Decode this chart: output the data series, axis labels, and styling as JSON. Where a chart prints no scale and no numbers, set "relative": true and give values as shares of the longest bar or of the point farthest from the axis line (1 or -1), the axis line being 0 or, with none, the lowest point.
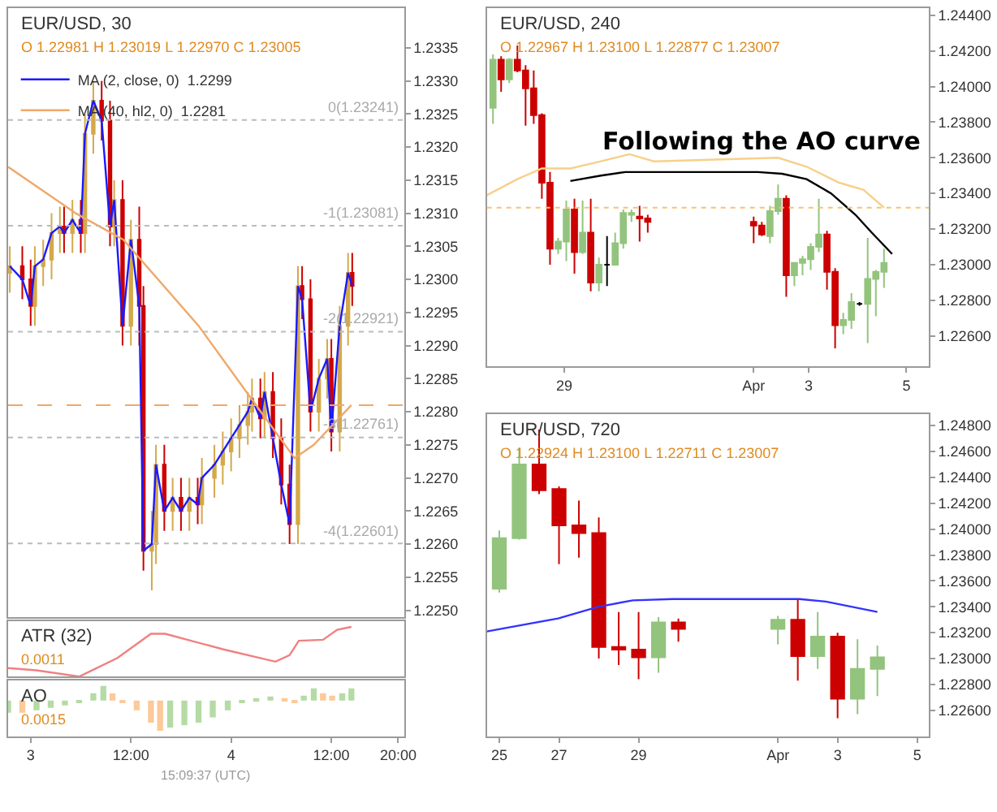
{
  "chart_data": [
    {
      "type": "candlestick",
      "title": "EUR/USD, 30",
      "subtitle": "O 1.22981 H 1.23019 L 1.22970 C 1.23005",
      "x": [
        "--04-02T21:30",
        "--04-02T23:00",
        "--04-03T00:00",
        "--04-03T00:30",
        "--04-03T01:30",
        "--04-03T02:30",
        "--04-03T03:30",
        "--04-03T04:00",
        "--04-03T05:00",
        "--04-03T06:00",
        "--04-03T06:30",
        "--04-03T07:30",
        "--04-03T08:30",
        "--04-03T09:30",
        "--04-03T10:00",
        "--04-03T11:00",
        "--04-03T12:00",
        "--04-03T13:00",
        "--04-03T13:30",
        "--04-03T14:30",
        "--04-03T15:00",
        "--04-03T16:00",
        "--04-03T17:00",
        "--04-03T18:00",
        "--04-03T19:00",
        "--04-03T20:00",
        "--04-03T20:30",
        "--04-03T22:00",
        "--04-03T23:00",
        "--04-04T00:00",
        "--04-04T01:00",
        "--04-04T02:00",
        "--04-04T02:30",
        "--04-04T03:30",
        "--04-04T04:00",
        "--04-04T05:00",
        "--04-04T06:00",
        "--04-04T07:00",
        "--04-04T08:00",
        "--04-04T08:30",
        "--04-04T09:30",
        "--04-04T10:30",
        "--04-04T11:30",
        "--04-04T12:00",
        "--04-04T13:00",
        "--04-04T14:00",
        "--04-04T14:30"
      ],
      "ohlc": [
        [
          1.2301,
          1.2305,
          1.2298,
          1.2302
        ],
        [
          1.2302,
          1.2305,
          1.2297,
          1.23
        ],
        [
          1.23,
          1.2303,
          1.2293,
          1.2296
        ],
        [
          1.2296,
          1.2305,
          1.2293,
          1.2302
        ],
        [
          1.2302,
          1.2306,
          1.2299,
          1.2303
        ],
        [
          1.2303,
          1.231,
          1.23,
          1.2307
        ],
        [
          1.2307,
          1.2311,
          1.2304,
          1.2308
        ],
        [
          1.2308,
          1.2311,
          1.2304,
          1.2307
        ],
        [
          1.2307,
          1.2312,
          1.2304,
          1.2309
        ],
        [
          1.2309,
          1.2312,
          1.2304,
          1.2307
        ],
        [
          1.2307,
          1.2325,
          1.2304,
          1.2322
        ],
        [
          1.2322,
          1.233,
          1.2319,
          1.2327
        ],
        [
          1.2327,
          1.233,
          1.2321,
          1.2324
        ],
        [
          1.2324,
          1.2327,
          1.2305,
          1.2308
        ],
        [
          1.2308,
          1.2315,
          1.2305,
          1.2312
        ],
        [
          1.2312,
          1.2315,
          1.229,
          1.2293
        ],
        [
          1.2293,
          1.2309,
          1.229,
          1.2306
        ],
        [
          1.2306,
          1.2311,
          1.229,
          1.2296
        ],
        [
          1.2296,
          1.2299,
          1.2256,
          1.2259
        ],
        [
          1.2259,
          1.2265,
          1.2253,
          1.226
        ],
        [
          1.226,
          1.2275,
          1.2257,
          1.2272
        ],
        [
          1.2272,
          1.2275,
          1.2262,
          1.2265
        ],
        [
          1.2265,
          1.227,
          1.2262,
          1.2267
        ],
        [
          1.2267,
          1.227,
          1.2262,
          1.2265
        ],
        [
          1.2265,
          1.227,
          1.2262,
          1.2267
        ],
        [
          1.2267,
          1.227,
          1.2263,
          1.2266
        ],
        [
          1.2266,
          1.2273,
          1.2263,
          1.227
        ],
        [
          1.227,
          1.2275,
          1.2267,
          1.2272
        ],
        [
          1.2272,
          1.2277,
          1.2269,
          1.2274
        ],
        [
          1.2274,
          1.2279,
          1.2271,
          1.2276
        ],
        [
          1.2276,
          1.2281,
          1.2273,
          1.2278
        ],
        [
          1.2278,
          1.2283,
          1.2275,
          1.228
        ],
        [
          1.228,
          1.2285,
          1.2277,
          1.2282
        ],
        [
          1.2282,
          1.2285,
          1.2276,
          1.2279
        ],
        [
          1.2279,
          1.2286,
          1.2276,
          1.2283
        ],
        [
          1.2283,
          1.2286,
          1.2273,
          1.2276
        ],
        [
          1.2276,
          1.2279,
          1.2266,
          1.2269
        ],
        [
          1.2269,
          1.2272,
          1.226,
          1.2263
        ],
        [
          1.2263,
          1.2302,
          1.226,
          1.2299
        ],
        [
          1.2299,
          1.2302,
          1.2294,
          1.2297
        ],
        [
          1.2297,
          1.23,
          1.2277,
          1.228
        ],
        [
          1.228,
          1.2288,
          1.2277,
          1.2285
        ],
        [
          1.2285,
          1.2291,
          1.2282,
          1.2288
        ],
        [
          1.2288,
          1.2291,
          1.2274,
          1.2277
        ],
        [
          1.2277,
          1.2296,
          1.2274,
          1.2293
        ],
        [
          1.2293,
          1.2304,
          1.229,
          1.2301
        ],
        [
          1.2301,
          1.2304,
          1.2296,
          1.2299
        ]
      ],
      "colors": [
        "#d4a94a",
        "#cc0000",
        "#cc0000",
        "#d4a94a",
        "#d4a94a",
        "#d4a94a",
        "#d4a94a",
        "#cc0000",
        "#d4a94a",
        "#cc0000",
        "#d4a94a",
        "#d4a94a",
        "#cc0000",
        "#cc0000",
        "#d4a94a",
        "#cc0000",
        "#d4a94a",
        "#cc0000",
        "#cc0000",
        "#d4a94a",
        "#d4a94a",
        "#cc0000",
        "#d4a94a",
        "#cc0000",
        "#d4a94a",
        "#cc0000",
        "#d4a94a",
        "#d4a94a",
        "#d4a94a",
        "#d4a94a",
        "#d4a94a",
        "#d4a94a",
        "#d4a94a",
        "#cc0000",
        "#d4a94a",
        "#cc0000",
        "#cc0000",
        "#cc0000",
        "#d4a94a",
        "#cc0000",
        "#cc0000",
        "#d4a94a",
        "#d4a94a",
        "#cc0000",
        "#d4a94a",
        "#d4a94a",
        "#cc0000"
      ],
      "series": [
        {
          "type": "line",
          "name": "MA (2, close, 0)  1.2299",
          "color": "#1a1aff",
          "values": [
            1.2302,
            1.23,
            1.2296,
            1.2302,
            1.2303,
            1.2307,
            1.2308,
            1.2307,
            1.2309,
            1.2307,
            1.2322,
            1.2327,
            1.2324,
            1.2308,
            1.2312,
            1.2293,
            1.2306,
            1.2296,
            1.2259,
            1.226,
            1.2272,
            1.2265,
            1.2267,
            1.2265,
            1.2267,
            1.2266,
            1.227,
            1.2272,
            1.2274,
            1.2276,
            1.2278,
            1.228,
            1.2282,
            1.2279,
            1.2283,
            1.2276,
            1.2269,
            1.2263,
            1.2299,
            1.2297,
            1.228,
            1.2285,
            1.2288,
            1.2277,
            1.2293,
            1.2301,
            1.2299
          ]
        },
        {
          "type": "line",
          "name": "MA (40, hl2, 0)  1.2281",
          "color": "#f0a868",
          "x": [
            "--04-02T21:18",
            "--04-03T05:24",
            "--04-03T11:06",
            "--04-03T20:06",
            "--04-04T02:24",
            "--04-04T07:36",
            "--04-04T09:54",
            "--04-04T14:24"
          ],
          "values": [
            1.2317,
            1.231,
            1.2306,
            1.2293,
            1.2282,
            1.2273,
            1.2275,
            1.2281
          ]
        }
      ],
      "ref_lines": [
        {
          "axis": "y",
          "value": 1.23241,
          "label": "0(1.23241)",
          "color": "#bbbbbb",
          "line_style": "dotted"
        },
        {
          "axis": "y",
          "value": 1.23081,
          "label": "-1(1.23081)",
          "color": "#bbbbbb",
          "line_style": "dotted"
        },
        {
          "axis": "y",
          "value": 1.22921,
          "label": "-2(1.22921)",
          "color": "#bbbbbb",
          "line_style": "dotted"
        },
        {
          "axis": "y",
          "value": 1.22761,
          "label": "-3(1.22761)",
          "color": "#bbbbbb",
          "line_style": "dotted"
        },
        {
          "axis": "y",
          "value": 1.22601,
          "label": "-4(1.22601)",
          "color": "#bbbbbb",
          "line_style": "dotted"
        },
        {
          "axis": "y",
          "value": 1.2281,
          "color": "#f0a868",
          "line_style": "dashed"
        }
      ],
      "xlim": [
        "--04-02T21:18",
        "--04-04T20:42"
      ],
      "ylim": [
        1.2249,
        1.2341
      ],
      "yticks": [
        {
          "value": 1.225,
          "label": "1.2250"
        },
        1.2255,
        {
          "value": 1.226,
          "label": "1.2260"
        },
        1.2265,
        {
          "value": 1.227,
          "label": "1.2270"
        },
        1.2275,
        {
          "value": 1.228,
          "label": "1.2280"
        },
        1.2285,
        {
          "value": 1.229,
          "label": "1.2290"
        },
        1.2295,
        {
          "value": 1.23,
          "label": "1.2300"
        },
        1.2305,
        {
          "value": 1.231,
          "label": "1.2310"
        },
        1.2315,
        {
          "value": 1.232,
          "label": "1.2320"
        },
        1.2325,
        {
          "value": 1.233,
          "label": "1.2330"
        },
        1.2335
      ],
      "legend": "top left",
      "tick_labels": "y"
    },
    {
      "type": "line",
      "title": "ATR (32)",
      "subtitle": "0.0011",
      "relative": true,
      "color": "#f08080",
      "x": [
        "--04-02T21:18",
        "--04-03T00:41",
        "--04-03T05:50",
        "--04-03T10:24",
        "--04-03T14:24",
        "--04-03T16:06",
        "--04-03T22:59",
        "--04-04T05:18",
        "--04-04T07:00",
        "--04-04T08:06",
        "--04-04T11:00",
        "--04-04T12:42",
        "--04-04T14:24"
      ],
      "values": [
        0.17,
        0.125,
        0,
        0.375,
        0.86,
        0.86,
        0.55,
        0.3,
        0.43,
        0.72,
        0.74,
        0.94,
        1
      ],
      "xlim": [
        "--04-02T21:18",
        "--04-04T20:42"
      ],
      "tick_labels": false
    },
    {
      "type": "bar",
      "title": "AO",
      "subtitle": "0.0015",
      "relative": true,
      "x": [
        "--04-02T21:18",
        "--04-02T23:00",
        "--04-03T00:42",
        "--04-03T02:24",
        "--04-03T04:06",
        "--04-03T05:48",
        "--04-03T07:30",
        "--04-03T08:42",
        "--04-03T09:48",
        "--04-03T11:00",
        "--04-03T12:42",
        "--04-03T14:24",
        "--04-03T15:30",
        "--04-03T16:42",
        "--04-03T18:24",
        "--04-03T20:06",
        "--04-03T21:48",
        "--04-03T23:36",
        "--04-04T01:18",
        "--04-04T03:00",
        "--04-04T04:42",
        "--04-04T06:24",
        "--04-04T07:36",
        "--04-04T08:42",
        "--04-04T09:54",
        "--04-04T11:00",
        "--04-04T12:06",
        "--04-04T13:18",
        "--04-04T14:24"
      ],
      "values": [
        -0.4,
        -0.4,
        -0.32,
        -0.24,
        -0.16,
        -0.05,
        0.24,
        0.48,
        0.24,
        -0.08,
        -0.32,
        -0.73,
        -1,
        -0.89,
        -0.81,
        -0.73,
        -0.56,
        -0.32,
        -0.08,
        0.08,
        0.13,
        0.08,
        -0.05,
        0.16,
        0.4,
        0.24,
        0.16,
        0.24,
        0.4
      ],
      "colors": [
        "#b5dba5",
        "#fcc99a",
        "#b5dba5",
        "#b5dba5",
        "#b5dba5",
        "#b5dba5",
        "#b5dba5",
        "#b5dba5",
        "#fcc99a",
        "#fcc99a",
        "#fcc99a",
        "#fcc99a",
        "#fcc99a",
        "#b5dba5",
        "#b5dba5",
        "#b5dba5",
        "#b5dba5",
        "#b5dba5",
        "#b5dba5",
        "#b5dba5",
        "#b5dba5",
        "#fcc99a",
        "#fcc99a",
        "#b5dba5",
        "#b5dba5",
        "#fcc99a",
        "#fcc99a",
        "#b5dba5",
        "#b5dba5"
      ],
      "xlim": [
        "--04-02T21:18",
        "--04-04T20:42"
      ],
      "xticks": [
        {
          "value": "--04-03",
          "label": "3"
        },
        {
          "value": "--04-03T12:00",
          "label": "12:00"
        },
        {
          "value": "--04-04",
          "label": "4"
        },
        {
          "value": "--04-04T12:00",
          "label": "12:00"
        },
        {
          "value": "--04-04T20:00",
          "label": "20:00"
        }
      ],
      "tick_labels": "x",
      "annotations": [
        "15:09:37 (UTC)"
      ]
    },
    {
      "type": "candlestick",
      "title": "EUR/USD, 240",
      "subtitle": "O 1.22967 H 1.23100 L 1.22877 C 1.23007",
      "x": [
        "--03-27T13:00",
        "--03-27T17:00",
        "--03-27T21:00",
        "--03-28T01:00",
        "--03-28T05:00",
        "--03-28T09:00",
        "--03-28T13:00",
        "--03-28T17:00",
        "--03-28T21:00",
        "--03-29T01:00",
        "--03-29T05:00",
        "--03-29T09:00",
        "--03-29T13:00",
        "--03-29T17:00",
        "--03-29T21:00",
        "--03-30T01:00",
        "--03-30T05:00",
        "--03-30T09:00",
        "--03-30T13:00",
        "--03-30T17:00",
        "--04-01T21:00",
        "--04-02T01:00",
        "--04-02T05:00",
        "--04-02T09:00",
        "--04-02T13:00",
        "--04-02T17:00",
        "--04-02T21:00",
        "--04-03T01:00",
        "--04-03T05:00",
        "--04-03T09:00",
        "--04-03T13:00",
        "--04-03T17:00",
        "--04-03T21:00",
        "--04-04T01:00",
        "--04-04T05:00",
        "--04-04T09:00",
        "--04-04T13:00"
      ],
      "ohlc": [
        [
          1.2388,
          1.2418,
          1.2379,
          1.2415
        ],
        [
          1.2415,
          1.2417,
          1.2397,
          1.2404
        ],
        [
          1.2404,
          1.2416,
          1.2402,
          1.2415
        ],
        [
          1.2415,
          1.2423,
          1.2408,
          1.2409
        ],
        [
          1.2409,
          1.2412,
          1.2378,
          1.2399
        ],
        [
          1.2399,
          1.2409,
          1.2379,
          1.2384
        ],
        [
          1.2384,
          1.2385,
          1.2337,
          1.2346
        ],
        [
          1.2346,
          1.2352,
          1.23,
          1.2309
        ],
        [
          1.2309,
          1.2315,
          1.2306,
          1.2313
        ],
        [
          1.2313,
          1.2336,
          1.2302,
          1.2331
        ],
        [
          1.2331,
          1.2337,
          1.2295,
          1.2307
        ],
        [
          1.2307,
          1.2336,
          1.2306,
          1.2318
        ],
        [
          1.2318,
          1.2337,
          1.2285,
          1.229
        ],
        [
          1.229,
          1.2304,
          1.2285,
          1.23
        ],
        [
          1.23,
          1.2316,
          1.2288,
          1.23
        ],
        [
          1.23,
          1.2318,
          1.23,
          1.2312
        ],
        [
          1.2312,
          1.2331,
          1.2309,
          1.2329
        ],
        [
          1.2328,
          1.2331,
          1.2324,
          1.2329
        ],
        [
          1.2327,
          1.2333,
          1.2313,
          1.2326
        ],
        [
          1.2326,
          1.2328,
          1.2318,
          1.2324
        ],
        [
          1.2324,
          1.2327,
          1.2312,
          1.2322
        ],
        [
          1.2322,
          1.2324,
          1.2316,
          1.2317
        ],
        [
          1.2316,
          1.2333,
          1.2312,
          1.233
        ],
        [
          1.233,
          1.2345,
          1.2328,
          1.2337
        ],
        [
          1.2337,
          1.2339,
          1.2282,
          1.2294
        ],
        [
          1.2294,
          1.2301,
          1.2288,
          1.2301
        ],
        [
          1.2301,
          1.2305,
          1.2294,
          1.2303
        ],
        [
          1.2303,
          1.2312,
          1.2297,
          1.231
        ],
        [
          1.231,
          1.2337,
          1.2307,
          1.2317
        ],
        [
          1.2317,
          1.2319,
          1.2286,
          1.2296
        ],
        [
          1.2296,
          1.2298,
          1.2253,
          1.2266
        ],
        [
          1.2266,
          1.2273,
          1.2261,
          1.2269
        ],
        [
          1.2269,
          1.2284,
          1.2264,
          1.2279
        ],
        [
          1.2278,
          1.2279,
          1.2277,
          1.2278
        ],
        [
          1.2278,
          1.2315,
          1.2256,
          1.2292
        ],
        [
          1.2292,
          1.2297,
          1.2271,
          1.2296
        ],
        [
          1.2296,
          1.2309,
          1.2287,
          1.2301
        ]
      ],
      "colors": [
        "#93c47d",
        "#cc0000",
        "#93c47d",
        "#cc0000",
        "#cc0000",
        "#cc0000",
        "#cc0000",
        "#cc0000",
        "#93c47d",
        "#93c47d",
        "#cc0000",
        "#93c47d",
        "#cc0000",
        "#93c47d",
        "#000000",
        "#93c47d",
        "#93c47d",
        "#93c47d",
        "#cc0000",
        "#cc0000",
        "#cc0000",
        "#cc0000",
        "#93c47d",
        "#93c47d",
        "#cc0000",
        "#93c47d",
        "#93c47d",
        "#93c47d",
        "#93c47d",
        "#cc0000",
        "#cc0000",
        "#93c47d",
        "#93c47d",
        "#000000",
        "#93c47d",
        "#93c47d",
        "#93c47d"
      ],
      "series": [
        {
          "type": "line",
          "color": "#f7d08a",
          "x": [
            "--03-27T10:00",
            "--03-28T01:00",
            "--03-28T13:00",
            "--03-29T03:00",
            "--03-29T18:00",
            "--03-30T08:00",
            "--03-30T20:00",
            "--04-02T09:00",
            "--04-02T23:00",
            "--04-03T15:00",
            "--04-04T03:00",
            "--04-04T13:00"
          ],
          "values": [
            1.2339,
            1.2348,
            1.2354,
            1.2354,
            1.2358,
            1.2362,
            1.2358,
            1.236,
            1.2355,
            1.2346,
            1.2342,
            1.2332
          ]
        },
        {
          "type": "line",
          "color": "#000000",
          "x": [
            "--03-29T03:00",
            "--03-29T18:00",
            "--03-30T06:00",
            "--04-01T23:00",
            "--04-02T11:00",
            "--04-02T23:00",
            "--04-03T11:00",
            "--04-03T23:00",
            "--04-04T07:00",
            "--04-04T17:00"
          ],
          "values": [
            1.2347,
            1.235,
            1.2352,
            1.2352,
            1.2351,
            1.2348,
            1.234,
            1.2328,
            1.2318,
            1.2306
          ]
        }
      ],
      "ref_lines": [
        {
          "axis": "y",
          "value": 1.2332,
          "color": "#f7c46c",
          "line_style": "dotted"
        }
      ],
      "xlim": [
        "--03-27T10:00",
        "--04-05T11:00"
      ],
      "ylim": [
        1.2243,
        1.2444
      ],
      "xticks": [
        {
          "value": "--03-29",
          "label": "29"
        },
        {
          "value": "--04-01T21:00",
          "label": "Apr"
        },
        {
          "value": "--04-03",
          "label": "3"
        },
        {
          "value": "--04-05",
          "label": "5"
        }
      ],
      "yticks": [
        {
          "value": 1.226,
          "label": "1.22600"
        },
        {
          "value": 1.228,
          "label": "1.22800"
        },
        {
          "value": 1.23,
          "label": "1.23000"
        },
        {
          "value": 1.232,
          "label": "1.23200"
        },
        {
          "value": 1.234,
          "label": "1.23400"
        },
        {
          "value": 1.236,
          "label": "1.23600"
        },
        {
          "value": 1.238,
          "label": "1.23800"
        },
        {
          "value": 1.24,
          "label": "1.24000"
        },
        {
          "value": 1.242,
          "label": "1.24200"
        },
        {
          "value": 1.244,
          "label": "1.24400"
        }
      ],
      "annotations": [
        "Following the AO curve"
      ]
    },
    {
      "type": "candlestick",
      "title": "EUR/USD, 720",
      "subtitle": "O 1.22924 H 1.23100 L 1.22711 C 1.23007",
      "x": [
        "--03-25T12:00",
        "--03-26T00:00",
        "--03-26T12:00",
        "--03-27T00:00",
        "--03-27T12:00",
        "--03-28T00:00",
        "--03-28T12:00",
        "--03-29T00:00",
        "--03-29T12:00",
        "--03-30T00:00",
        "--04-01T12:00",
        "--04-02T00:00",
        "--04-02T12:00",
        "--04-03T00:00",
        "--04-03T12:00",
        "--04-04T00:00"
      ],
      "ohlc": [
        [
          1.2354,
          1.2399,
          1.2351,
          1.2393
        ],
        [
          1.2393,
          1.2463,
          1.2392,
          1.245
        ],
        [
          1.245,
          1.2477,
          1.2427,
          1.243
        ],
        [
          1.2431,
          1.2433,
          1.2373,
          1.2403
        ],
        [
          1.2403,
          1.2422,
          1.2378,
          1.2397
        ],
        [
          1.2397,
          1.2409,
          1.23,
          1.2309
        ],
        [
          1.2309,
          1.2336,
          1.2295,
          1.2307
        ],
        [
          1.2307,
          1.2336,
          1.2284,
          1.2301
        ],
        [
          1.2301,
          1.2332,
          1.2289,
          1.2328
        ],
        [
          1.2328,
          1.2331,
          1.2313,
          1.2323
        ],
        [
          1.2323,
          1.2333,
          1.2311,
          1.233
        ],
        [
          1.233,
          1.2346,
          1.2283,
          1.2302
        ],
        [
          1.2302,
          1.2336,
          1.2292,
          1.2317
        ],
        [
          1.2317,
          1.232,
          1.2254,
          1.2269
        ],
        [
          1.2269,
          1.2315,
          1.2257,
          1.2292
        ],
        [
          1.2292,
          1.231,
          1.2271,
          1.2301
        ]
      ],
      "colors": [
        "#93c47d",
        "#93c47d",
        "#cc0000",
        "#cc0000",
        "#cc0000",
        "#cc0000",
        "#cc0000",
        "#cc0000",
        "#93c47d",
        "#cc0000",
        "#93c47d",
        "#cc0000",
        "#93c47d",
        "#cc0000",
        "#93c47d",
        "#93c47d"
      ],
      "series": [
        {
          "type": "line",
          "color": "#3333ff",
          "x": [
            "--03-25T04:30",
            "--03-26T23:30",
            "--03-27T23:30",
            "--03-28T20:30",
            "--03-29T20:30",
            "--04-02T01:00",
            "--04-02T17:00",
            "--04-04T00:00"
          ],
          "values": [
            1.2321,
            1.2331,
            1.234,
            1.2345,
            1.2346,
            1.2346,
            1.2344,
            1.2336
          ]
        }
      ],
      "xlim": [
        "--03-25T04:30",
        "--04-05T07:00"
      ],
      "ylim": [
        1.224,
        1.2489
      ],
      "xticks": [
        {
          "value": "--03-25T12:00",
          "label": "25"
        },
        {
          "value": "--03-27",
          "label": "27"
        },
        {
          "value": "--03-29",
          "label": "29"
        },
        {
          "value": "--04-01T12:00",
          "label": "Apr"
        },
        {
          "value": "--04-03",
          "label": "3"
        },
        {
          "value": "--04-05",
          "label": "5"
        }
      ],
      "yticks": [
        {
          "value": 1.226,
          "label": "1.22600"
        },
        {
          "value": 1.228,
          "label": "1.22800"
        },
        {
          "value": 1.23,
          "label": "1.23000"
        },
        {
          "value": 1.232,
          "label": "1.23200"
        },
        {
          "value": 1.234,
          "label": "1.23400"
        },
        {
          "value": 1.236,
          "label": "1.23600"
        },
        {
          "value": 1.238,
          "label": "1.23800"
        },
        {
          "value": 1.24,
          "label": "1.24000"
        },
        {
          "value": 1.242,
          "label": "1.24200"
        },
        {
          "value": 1.244,
          "label": "1.24400"
        },
        {
          "value": 1.246,
          "label": "1.24600"
        },
        {
          "value": 1.248,
          "label": "1.24800"
        }
      ]
    }
  ]
}
